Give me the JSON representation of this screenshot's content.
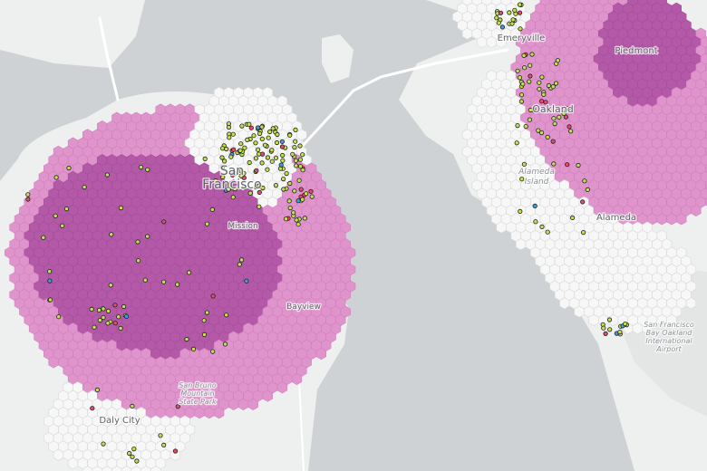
{
  "map": {
    "labels": {
      "san_francisco_line1": "San",
      "san_francisco_line2": "Francisco",
      "emeryville": "Emeryville",
      "piedmont": "Piedmont",
      "oakland": "Oakland",
      "alameda_island_line1": "Alameda",
      "alameda_island_line2": "Island",
      "alameda": "Alameda",
      "mission": "Mission",
      "bayview": "Bayview",
      "daly_city": "Daly City",
      "state_park_line1": "San Bruno",
      "state_park_line2": "Mountain",
      "state_park_line3": "State Park",
      "airport_line1": "San Francisco",
      "airport_line2": "Bay Oakland",
      "airport_line3": "International",
      "airport_line4": "Airport"
    },
    "colors": {
      "water": "#cfd2d4",
      "land": "#eef0ef",
      "hex_white": "#f7f7f7",
      "hex_light_pink": "#df95cc",
      "hex_dark_purple": "#b459a8",
      "point_yellow_green": "#c2e14f",
      "point_red": "#e84a6a",
      "point_blue": "#3f9fd8"
    }
  }
}
